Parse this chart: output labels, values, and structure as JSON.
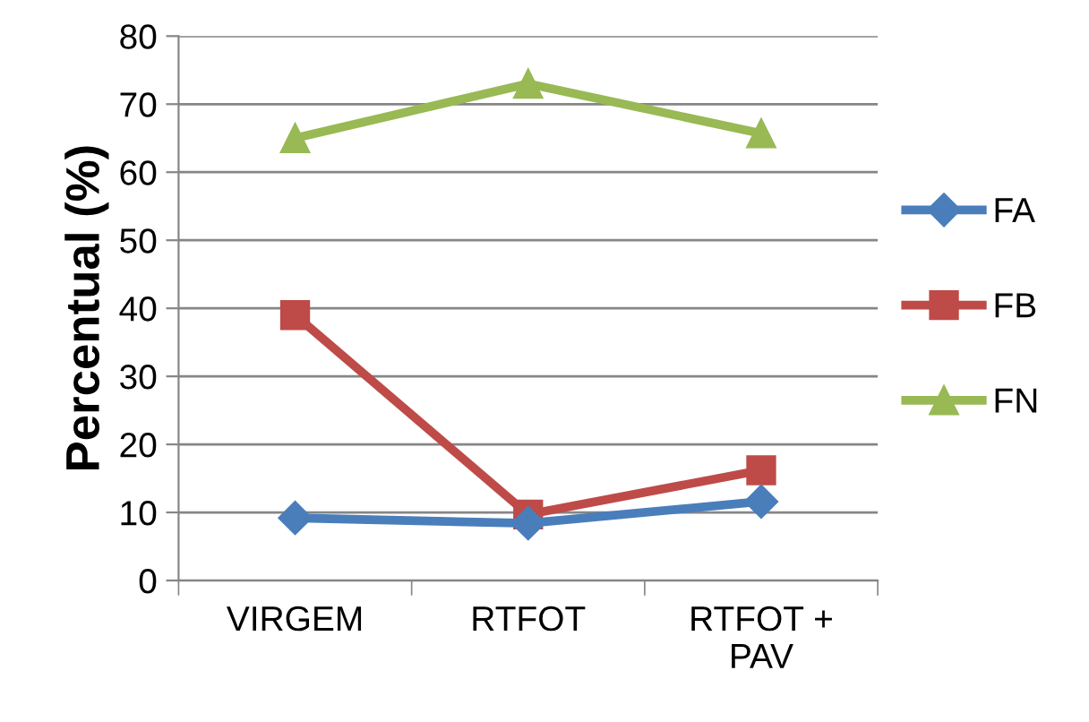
{
  "chart_data": {
    "type": "line",
    "ylabel": "Percentual (%)",
    "categories": [
      "VIRGEM",
      "RTFOT",
      "RTFOT +\nPAV"
    ],
    "series": [
      {
        "name": "FA",
        "color": "#4a7ebb",
        "marker": "diamond",
        "values": [
          9.2,
          8.4,
          11.6
        ]
      },
      {
        "name": "FB",
        "color": "#be4b48",
        "marker": "square",
        "values": [
          39,
          9.7,
          16.2
        ]
      },
      {
        "name": "FN",
        "color": "#98b954",
        "marker": "triangle",
        "values": [
          65,
          73,
          65.7
        ]
      }
    ],
    "ylim": [
      0,
      80
    ],
    "yticks": [
      0,
      10,
      20,
      30,
      40,
      50,
      60,
      70,
      80
    ],
    "grid": "y",
    "legend": "right",
    "line_style": "solid"
  }
}
